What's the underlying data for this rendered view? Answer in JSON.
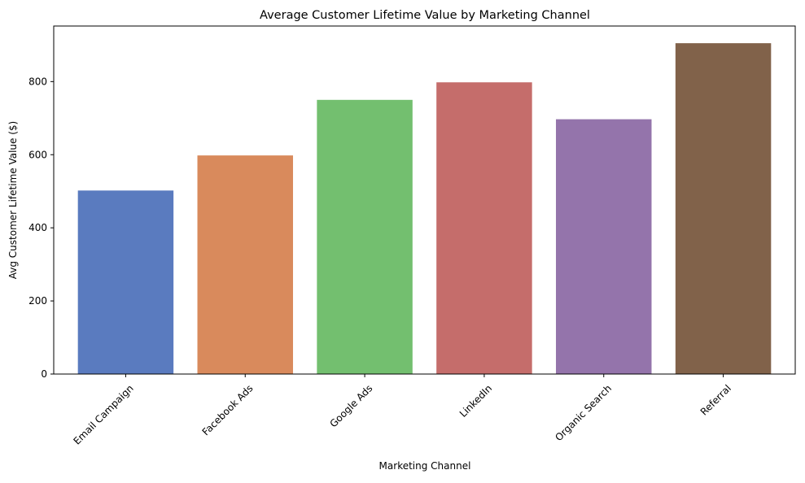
{
  "chart_data": {
    "type": "bar",
    "title": "Average Customer Lifetime Value by Marketing Channel",
    "xlabel": "Marketing Channel",
    "ylabel": "Avg Customer Lifetime Value ($)",
    "categories": [
      "Email Campaign",
      "Facebook Ads",
      "Google Ads",
      "LinkedIn",
      "Organic Search",
      "Referral"
    ],
    "values": [
      502,
      598,
      750,
      798,
      697,
      905
    ],
    "colors": [
      "#5a7bbf",
      "#d98a5c",
      "#73bf6f",
      "#c56d6b",
      "#9474ab",
      "#81624a"
    ],
    "ylim": [
      0,
      952
    ],
    "yticks": [
      0,
      200,
      400,
      600,
      800
    ],
    "ytick_labels": [
      "0",
      "200",
      "400",
      "600",
      "800"
    ],
    "grid": false,
    "legend": "none"
  }
}
